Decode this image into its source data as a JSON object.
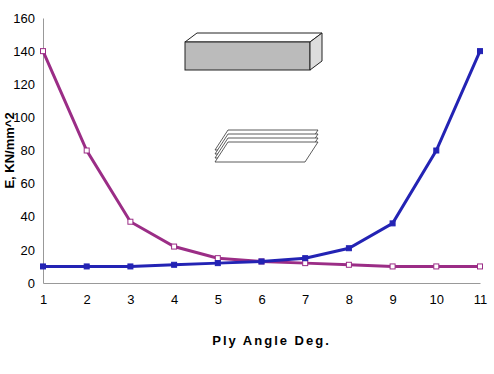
{
  "chart_data": {
    "type": "line",
    "x_label": "Ply Angle Deg.",
    "y_label": "E, KN/mm^2",
    "x": [
      1,
      2,
      3,
      4,
      5,
      6,
      7,
      8,
      9,
      10,
      11
    ],
    "xlim": [
      1,
      11
    ],
    "xticks": [
      1,
      2,
      3,
      4,
      5,
      6,
      7,
      8,
      9,
      10,
      11
    ],
    "ylim": [
      0,
      160
    ],
    "yticks": [
      0,
      20,
      40,
      60,
      80,
      100,
      120,
      140,
      160
    ],
    "grid": false,
    "series": [
      {
        "color": "#9b2d86",
        "marker": "square",
        "values": [
          140,
          80,
          37,
          22,
          15,
          13,
          12,
          11,
          10,
          10,
          10
        ]
      },
      {
        "color": "#2323b4",
        "marker": "square",
        "values": [
          10,
          10,
          10,
          11,
          12,
          13,
          15,
          21,
          36,
          80,
          140
        ]
      }
    ]
  }
}
